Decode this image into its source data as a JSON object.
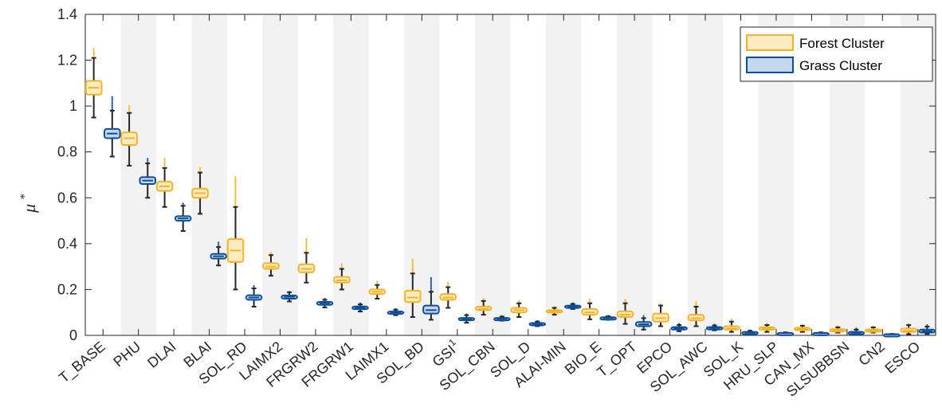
{
  "chart_data": {
    "type": "boxplot",
    "ylabel": "μ*",
    "ylim": [
      0,
      1.4
    ],
    "yticks": [
      0,
      0.2,
      0.4,
      0.6,
      0.8,
      1,
      1.2,
      1.4
    ],
    "ytick_labels": [
      "0",
      "0.2",
      "0.4",
      "0.6",
      "0.8",
      "1",
      "1.2",
      "1.4"
    ],
    "grid": false,
    "legend_position": "top-right",
    "categories": [
      "T_BASE",
      "PHU",
      "DLAI",
      "BLAI",
      "SOL_RD",
      "LAIMX2",
      "FRGRW2",
      "FRGRW1",
      "LAIMX1",
      "SOL_BD",
      "GSI",
      "SOL_CBN",
      "SOL_D",
      "ALAI-MIN",
      "BIO_E",
      "T_OPT",
      "EPCO",
      "SOL_AWC",
      "SOL_K",
      "HRU_SLP",
      "CAN_MX",
      "SLSUBBSN",
      "CN2",
      "ESCO"
    ],
    "category_superscripts": {
      "GSI": "1"
    },
    "series": [
      {
        "name": "Forest Cluster",
        "edge_color": "#F5B324",
        "fill_color": "#FDEBC4",
        "stats": [
          {
            "category": "T_BASE",
            "whisker_low": 0.95,
            "q1": 1.05,
            "median": 1.08,
            "q3": 1.11,
            "whisker_high": 1.21,
            "outlier_high": 1.25
          },
          {
            "category": "PHU",
            "whisker_low": 0.74,
            "q1": 0.83,
            "median": 0.86,
            "q3": 0.885,
            "whisker_high": 0.97,
            "outlier_high": 1.0
          },
          {
            "category": "DLAI",
            "whisker_low": 0.56,
            "q1": 0.63,
            "median": 0.65,
            "q3": 0.67,
            "whisker_high": 0.73,
            "outlier_high": 0.77
          },
          {
            "category": "BLAI",
            "whisker_low": 0.53,
            "q1": 0.6,
            "median": 0.62,
            "q3": 0.64,
            "whisker_high": 0.71,
            "outlier_high": 0.73
          },
          {
            "category": "SOL_RD",
            "whisker_low": 0.2,
            "q1": 0.32,
            "median": 0.37,
            "q3": 0.42,
            "whisker_high": 0.56,
            "outlier_high": 0.69
          },
          {
            "category": "LAIMX2",
            "whisker_low": 0.26,
            "q1": 0.29,
            "median": 0.3,
            "q3": 0.315,
            "whisker_high": 0.35,
            "outlier_high": 0.36
          },
          {
            "category": "FRGRW2",
            "whisker_low": 0.23,
            "q1": 0.275,
            "median": 0.29,
            "q3": 0.31,
            "whisker_high": 0.36,
            "outlier_high": 0.42
          },
          {
            "category": "FRGRW1",
            "whisker_low": 0.2,
            "q1": 0.23,
            "median": 0.24,
            "q3": 0.255,
            "whisker_high": 0.29,
            "outlier_high": 0.31
          },
          {
            "category": "LAIMX1",
            "whisker_low": 0.16,
            "q1": 0.18,
            "median": 0.19,
            "q3": 0.2,
            "whisker_high": 0.22,
            "outlier_high": 0.235
          },
          {
            "category": "SOL_BD",
            "whisker_low": 0.08,
            "q1": 0.145,
            "median": 0.165,
            "q3": 0.195,
            "whisker_high": 0.27,
            "outlier_high": 0.33
          },
          {
            "category": "GSI",
            "whisker_low": 0.12,
            "q1": 0.155,
            "median": 0.165,
            "q3": 0.18,
            "whisker_high": 0.21,
            "outlier_high": 0.23
          },
          {
            "category": "SOL_CBN",
            "whisker_low": 0.09,
            "q1": 0.11,
            "median": 0.115,
            "q3": 0.125,
            "whisker_high": 0.15,
            "outlier_high": 0.16
          },
          {
            "category": "SOL_D",
            "whisker_low": 0.08,
            "q1": 0.1,
            "median": 0.11,
            "q3": 0.12,
            "whisker_high": 0.14,
            "outlier_high": 0.15
          },
          {
            "category": "ALAI-MIN",
            "whisker_low": 0.09,
            "q1": 0.1,
            "median": 0.105,
            "q3": 0.11,
            "whisker_high": 0.12,
            "outlier_high": 0.125
          },
          {
            "category": "BIO_E",
            "whisker_low": 0.07,
            "q1": 0.09,
            "median": 0.1,
            "q3": 0.115,
            "whisker_high": 0.14,
            "outlier_high": 0.155
          },
          {
            "category": "T_OPT",
            "whisker_low": 0.05,
            "q1": 0.08,
            "median": 0.09,
            "q3": 0.105,
            "whisker_high": 0.14,
            "outlier_high": 0.155
          },
          {
            "category": "EPCO",
            "whisker_low": 0.04,
            "q1": 0.06,
            "median": 0.075,
            "q3": 0.095,
            "whisker_high": 0.13,
            "outlier_high": 0.135
          },
          {
            "category": "SOL_AWC",
            "whisker_low": 0.04,
            "q1": 0.065,
            "median": 0.075,
            "q3": 0.09,
            "whisker_high": 0.125,
            "outlier_high": 0.145
          },
          {
            "category": "SOL_K",
            "whisker_low": 0.015,
            "q1": 0.025,
            "median": 0.03,
            "q3": 0.04,
            "whisker_high": 0.06,
            "outlier_high": 0.07
          },
          {
            "category": "HRU_SLP",
            "whisker_low": 0.015,
            "q1": 0.025,
            "median": 0.03,
            "q3": 0.035,
            "whisker_high": 0.045,
            "outlier_high": 0.05
          },
          {
            "category": "CAN_MX",
            "whisker_low": 0.015,
            "q1": 0.022,
            "median": 0.027,
            "q3": 0.033,
            "whisker_high": 0.042,
            "outlier_high": 0.045
          },
          {
            "category": "SLSUBBSN",
            "whisker_low": 0.012,
            "q1": 0.018,
            "median": 0.022,
            "q3": 0.027,
            "whisker_high": 0.035,
            "outlier_high": 0.04
          },
          {
            "category": "CN2",
            "whisker_low": 0.012,
            "q1": 0.017,
            "median": 0.02,
            "q3": 0.026,
            "whisker_high": 0.035,
            "outlier_high": 0.038
          },
          {
            "category": "ESCO",
            "whisker_low": 0.005,
            "q1": 0.015,
            "median": 0.02,
            "q3": 0.03,
            "whisker_high": 0.045,
            "outlier_high": 0.05
          }
        ]
      },
      {
        "name": "Grass Cluster",
        "edge_color": "#0B4F9C",
        "fill_color": "#C5D7EC",
        "stats": [
          {
            "category": "T_BASE",
            "whisker_low": 0.78,
            "q1": 0.86,
            "median": 0.88,
            "q3": 0.9,
            "whisker_high": 0.98,
            "outlier_high": 1.04
          },
          {
            "category": "PHU",
            "whisker_low": 0.6,
            "q1": 0.66,
            "median": 0.675,
            "q3": 0.69,
            "whisker_high": 0.75,
            "outlier_high": 0.77
          },
          {
            "category": "DLAI",
            "whisker_low": 0.455,
            "q1": 0.5,
            "median": 0.51,
            "q3": 0.52,
            "whisker_high": 0.565,
            "outlier_high": 0.575
          },
          {
            "category": "BLAI",
            "whisker_low": 0.305,
            "q1": 0.335,
            "median": 0.345,
            "q3": 0.355,
            "whisker_high": 0.385,
            "outlier_high": 0.405
          },
          {
            "category": "SOL_RD",
            "whisker_low": 0.125,
            "q1": 0.155,
            "median": 0.165,
            "q3": 0.175,
            "whisker_high": 0.205,
            "outlier_high": 0.215
          },
          {
            "category": "LAIMX2",
            "whisker_low": 0.148,
            "q1": 0.16,
            "median": 0.168,
            "q3": 0.174,
            "whisker_high": 0.188,
            "outlier_high": 0.19
          },
          {
            "category": "FRGRW2",
            "whisker_low": 0.122,
            "q1": 0.133,
            "median": 0.14,
            "q3": 0.146,
            "whisker_high": 0.155,
            "outlier_high": 0.16
          },
          {
            "category": "FRGRW1",
            "whisker_low": 0.104,
            "q1": 0.114,
            "median": 0.12,
            "q3": 0.126,
            "whisker_high": 0.135,
            "outlier_high": 0.14
          },
          {
            "category": "LAIMX1",
            "whisker_low": 0.088,
            "q1": 0.095,
            "median": 0.1,
            "q3": 0.104,
            "whisker_high": 0.112,
            "outlier_high": 0.115
          },
          {
            "category": "SOL_BD",
            "whisker_low": 0.068,
            "q1": 0.095,
            "median": 0.11,
            "q3": 0.13,
            "whisker_high": 0.19,
            "outlier_high": 0.25
          },
          {
            "category": "GSI",
            "whisker_low": 0.055,
            "q1": 0.066,
            "median": 0.07,
            "q3": 0.076,
            "whisker_high": 0.088,
            "outlier_high": 0.092
          },
          {
            "category": "SOL_CBN",
            "whisker_low": 0.064,
            "q1": 0.068,
            "median": 0.072,
            "q3": 0.076,
            "whisker_high": 0.082,
            "outlier_high": 0.084
          },
          {
            "category": "SOL_D",
            "whisker_low": 0.04,
            "q1": 0.047,
            "median": 0.05,
            "q3": 0.054,
            "whisker_high": 0.06,
            "outlier_high": 0.062
          },
          {
            "category": "ALAI-MIN",
            "whisker_low": 0.115,
            "q1": 0.12,
            "median": 0.125,
            "q3": 0.13,
            "whisker_high": 0.137,
            "outlier_high": 0.14
          },
          {
            "category": "BIO_E",
            "whisker_low": 0.068,
            "q1": 0.072,
            "median": 0.076,
            "q3": 0.079,
            "whisker_high": 0.083,
            "outlier_high": 0.085
          },
          {
            "category": "T_OPT",
            "whisker_low": 0.025,
            "q1": 0.04,
            "median": 0.048,
            "q3": 0.058,
            "whisker_high": 0.075,
            "outlier_high": 0.085
          },
          {
            "category": "EPCO",
            "whisker_low": 0.018,
            "q1": 0.025,
            "median": 0.03,
            "q3": 0.036,
            "whisker_high": 0.045,
            "outlier_high": 0.05
          },
          {
            "category": "SOL_AWC",
            "whisker_low": 0.022,
            "q1": 0.028,
            "median": 0.032,
            "q3": 0.036,
            "whisker_high": 0.043,
            "outlier_high": 0.047
          },
          {
            "category": "SOL_K",
            "whisker_low": 0.006,
            "q1": 0.01,
            "median": 0.012,
            "q3": 0.015,
            "whisker_high": 0.02,
            "outlier_high": 0.022
          },
          {
            "category": "HRU_SLP",
            "whisker_low": 0.006,
            "q1": 0.008,
            "median": 0.01,
            "q3": 0.011,
            "whisker_high": 0.013,
            "outlier_high": 0.014
          },
          {
            "category": "CAN_MX",
            "whisker_low": 0.006,
            "q1": 0.008,
            "median": 0.01,
            "q3": 0.011,
            "whisker_high": 0.013,
            "outlier_high": 0.014
          },
          {
            "category": "SLSUBBSN",
            "whisker_low": 0.004,
            "q1": 0.009,
            "median": 0.012,
            "q3": 0.015,
            "whisker_high": 0.025,
            "outlier_high": 0.03
          },
          {
            "category": "CN2",
            "whisker_low": 0.002,
            "q1": 0.003,
            "median": 0.004,
            "q3": 0.005,
            "whisker_high": 0.006,
            "outlier_high": 0.007
          },
          {
            "category": "ESCO",
            "whisker_low": 0.006,
            "q1": 0.012,
            "median": 0.018,
            "q3": 0.025,
            "whisker_high": 0.038,
            "outlier_high": 0.045
          }
        ]
      }
    ]
  }
}
